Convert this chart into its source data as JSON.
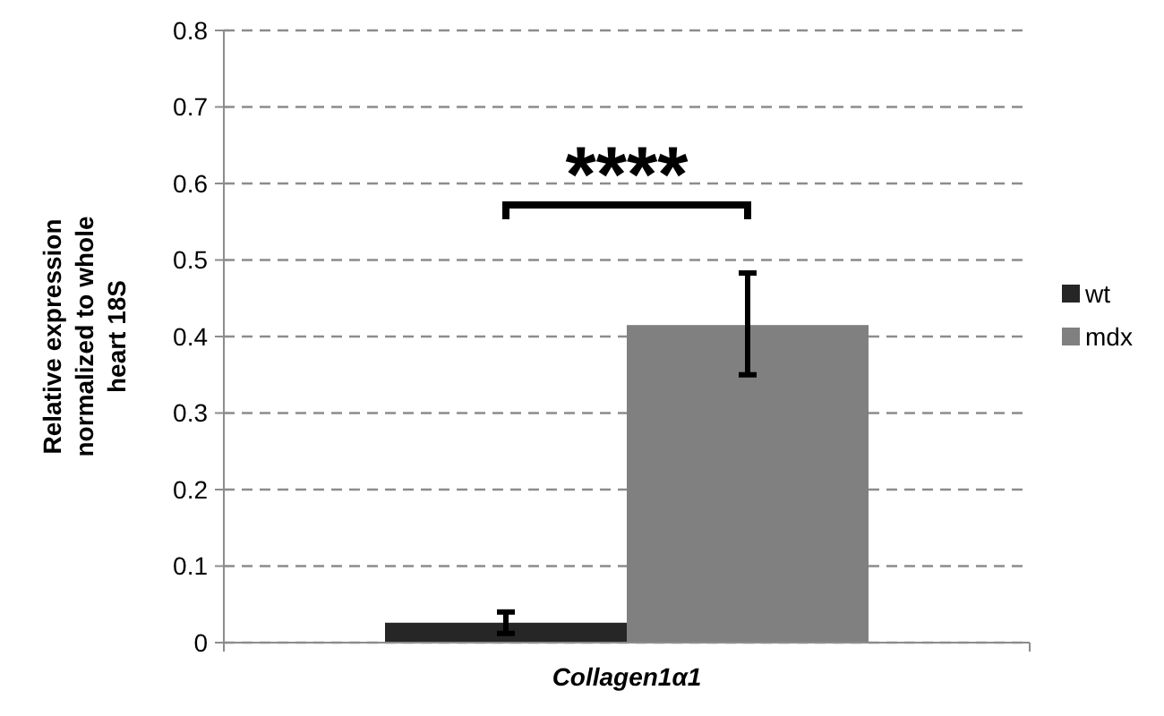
{
  "chart_data": {
    "type": "bar",
    "categories": [
      "Collagen1α1"
    ],
    "series": [
      {
        "name": "wt",
        "color": "#262626",
        "values": [
          0.026
        ],
        "errors": [
          [
            0.012,
            0.04
          ]
        ]
      },
      {
        "name": "mdx",
        "color": "#808080",
        "values": [
          0.415
        ],
        "errors": [
          [
            0.35,
            0.483
          ]
        ]
      }
    ],
    "ylabel": "Relative expression normalized to whole heart 18S",
    "ylim": [
      0,
      0.8
    ],
    "yticks": [
      0,
      0.1,
      0.2,
      0.3,
      0.4,
      0.5,
      0.6,
      0.7,
      0.8
    ],
    "grid": "y",
    "legend": "right",
    "annotations": [
      "****"
    ]
  }
}
